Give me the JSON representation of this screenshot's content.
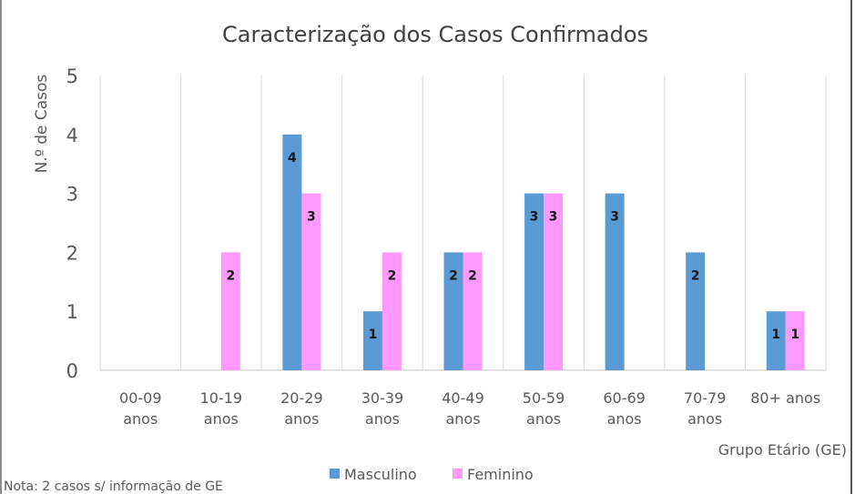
{
  "chart_data": {
    "type": "bar",
    "title": "Caracterização dos Casos Confirmados",
    "xlabel": "Grupo Etário (GE)",
    "ylabel": "N.º de Casos",
    "ylim": [
      0,
      5
    ],
    "yticks": [
      "0",
      "1",
      "2",
      "3",
      "4",
      "5"
    ],
    "grid": "vertical category separators",
    "legend_position": "bottom",
    "categories": [
      [
        "00-09",
        "anos"
      ],
      [
        "10-19",
        "anos"
      ],
      [
        "20-29",
        "anos"
      ],
      [
        "30-39",
        "anos"
      ],
      [
        "40-49",
        "anos"
      ],
      [
        "50-59",
        "anos"
      ],
      [
        "60-69",
        "anos"
      ],
      [
        "70-79",
        "anos"
      ],
      [
        "80+ anos"
      ]
    ],
    "series": [
      {
        "name": "Masculino",
        "color": "#5B9BD5",
        "values": [
          0,
          0,
          4,
          1,
          2,
          3,
          3,
          2,
          1
        ]
      },
      {
        "name": "Feminino",
        "color": "#FF99FF",
        "values": [
          0,
          2,
          3,
          2,
          2,
          3,
          0,
          0,
          1
        ]
      }
    ],
    "note": "Nota: 2 casos s/ informação de GE"
  }
}
